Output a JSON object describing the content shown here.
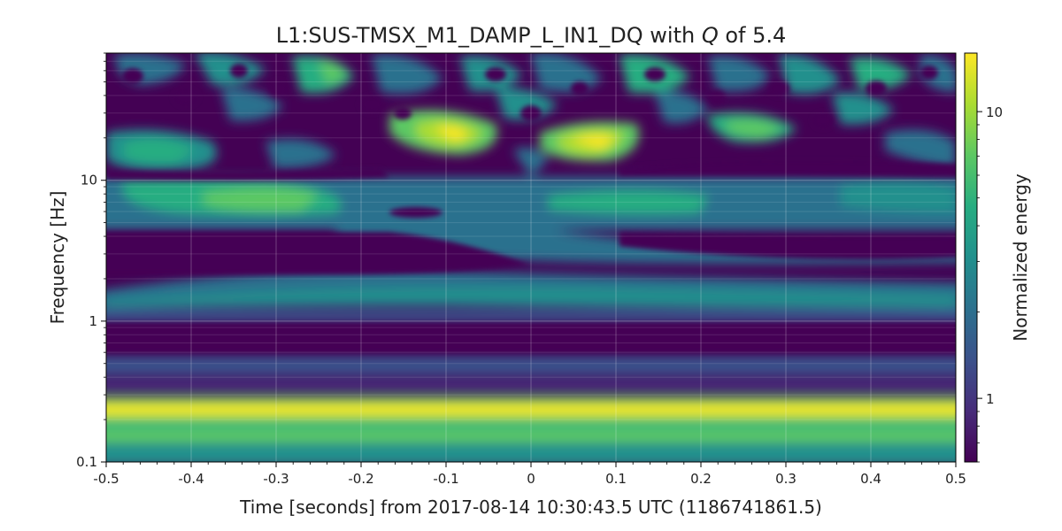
{
  "chart_data": {
    "type": "heatmap",
    "title": {
      "prefix": "L1:SUS-TMSX_M1_DAMP_L_IN1_DQ with ",
      "italic": "Q",
      "suffix": " of 5.4"
    },
    "xlabel": "Time [seconds] from 2017-08-14 10:30:43.5 UTC (1186741861.5)",
    "ylabel": "Frequency [Hz]",
    "xlim": [
      -0.5,
      0.5
    ],
    "ylim": [
      0.1,
      80
    ],
    "y_scale": "log",
    "x_ticks": [
      {
        "value": -0.5,
        "label": "-0.5"
      },
      {
        "value": -0.4,
        "label": "-0.4"
      },
      {
        "value": -0.3,
        "label": "-0.3"
      },
      {
        "value": -0.2,
        "label": "-0.2"
      },
      {
        "value": -0.1,
        "label": "-0.1"
      },
      {
        "value": 0,
        "label": "0"
      },
      {
        "value": 0.1,
        "label": "0.1"
      },
      {
        "value": 0.2,
        "label": "0.2"
      },
      {
        "value": 0.3,
        "label": "0.3"
      },
      {
        "value": 0.4,
        "label": "0.4"
      },
      {
        "value": 0.5,
        "label": "0.5"
      }
    ],
    "y_ticks": [
      {
        "value": 0.1,
        "label": "0.1"
      },
      {
        "value": 1,
        "label": "1"
      },
      {
        "value": 10,
        "label": "10"
      }
    ],
    "colorbar": {
      "label": "Normalized energy",
      "scale": "log",
      "range": [
        0.6,
        16
      ],
      "ticks": [
        {
          "value": 1,
          "label": "1"
        },
        {
          "value": 10,
          "label": "10"
        }
      ],
      "colormap": "viridis"
    },
    "features": [
      {
        "name": "strong-band",
        "freq": 0.24,
        "energy": 15
      },
      {
        "name": "lower-band",
        "freq": 0.14,
        "energy": 5
      },
      {
        "name": "mid-band",
        "freq": 1.7,
        "energy": 3
      },
      {
        "name": "upper-band",
        "freq": 7.8,
        "energy": 4
      },
      {
        "name": "peak-1",
        "time": -0.1,
        "freq": 27,
        "energy": 12
      },
      {
        "name": "peak-2",
        "time": 0.06,
        "freq": 22,
        "energy": 13
      },
      {
        "name": "peak-3",
        "time": 0.26,
        "freq": 25,
        "energy": 7
      }
    ],
    "grid": true
  }
}
